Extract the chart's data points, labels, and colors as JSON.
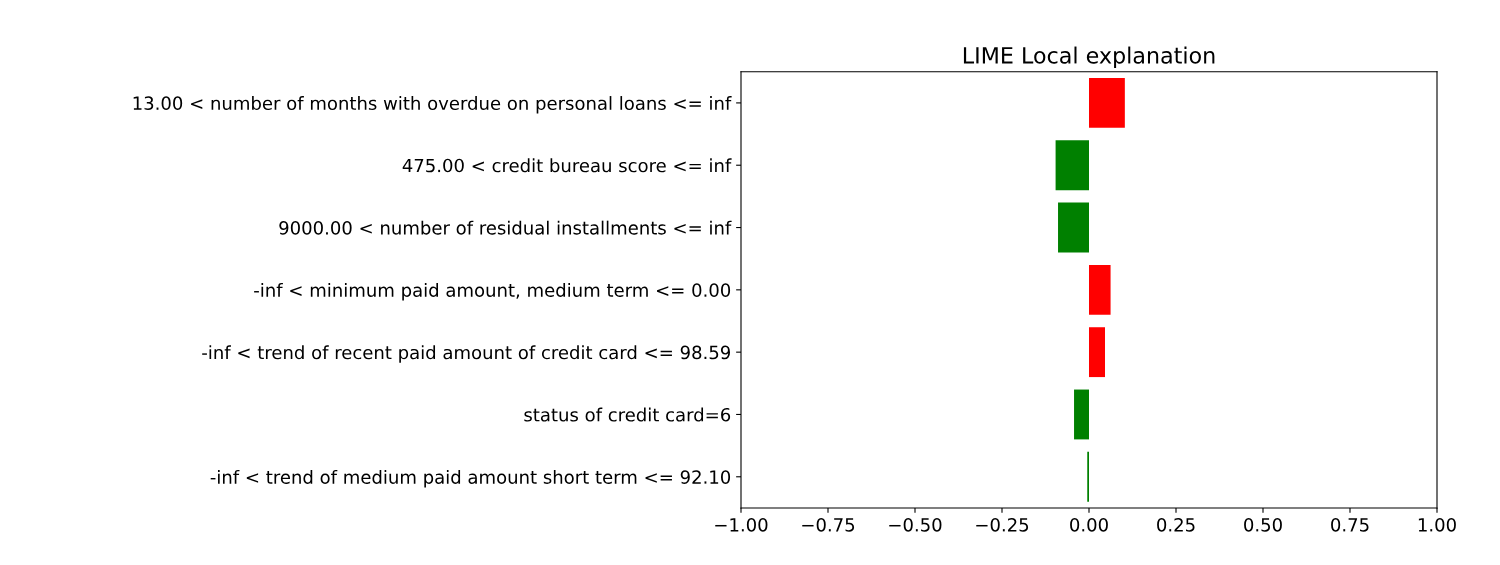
{
  "chart_data": {
    "type": "bar",
    "orientation": "horizontal",
    "title": "LIME Local explanation",
    "categories": [
      "13.00 < number of months with overdue on personal loans <= inf",
      "475.00 < credit bureau score <= inf",
      "9000.00 < number of residual installments <= inf",
      "-inf < minimum paid amount, medium term <= 0.00",
      "-inf < trend of recent paid amount of credit card <= 98.59",
      "status of credit card=6",
      "-inf < trend of medium paid amount short term <= 92.10"
    ],
    "values": [
      0.103,
      -0.096,
      -0.089,
      0.062,
      0.046,
      -0.043,
      -0.005
    ],
    "colors": [
      "#ff0000",
      "#008000",
      "#008000",
      "#ff0000",
      "#ff0000",
      "#008000",
      "#008000"
    ],
    "xlim": [
      -1,
      1
    ],
    "xticks": [
      {
        "value": -1,
        "label": "−1.00"
      },
      {
        "value": -0.75,
        "label": "−0.75"
      },
      {
        "value": -0.5,
        "label": "−0.50"
      },
      {
        "value": -0.25,
        "label": "−0.25"
      },
      {
        "value": 0,
        "label": "0.00"
      },
      {
        "value": 0.25,
        "label": "0.25"
      },
      {
        "value": 0.5,
        "label": "0.50"
      },
      {
        "value": 0.75,
        "label": "0.75"
      },
      {
        "value": 1,
        "label": "1.00"
      }
    ],
    "grid": false,
    "legend": false
  }
}
